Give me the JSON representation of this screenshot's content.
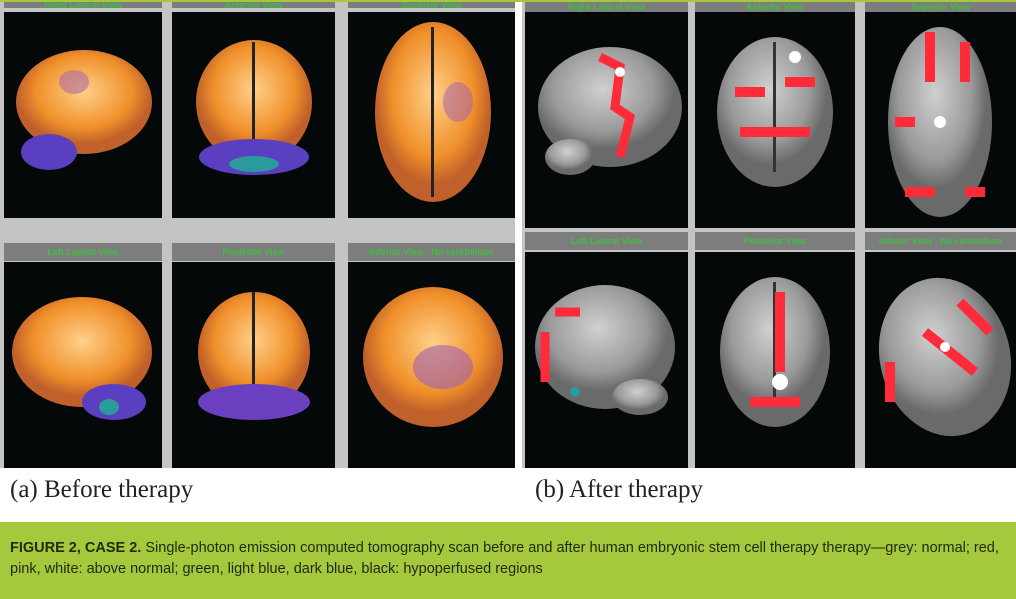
{
  "before": {
    "label": "(a) Before therapy",
    "views": [
      "Right Lateral View",
      "Anterior View",
      "Superior View",
      "Left Lateral View",
      "Posterior View",
      "Inferior View - No cerebellum"
    ]
  },
  "after": {
    "label": "(b) After therapy",
    "views": [
      "Right Lateral View",
      "Anterior View",
      "Superior View",
      "Left Lateral View",
      "Posterior View",
      "Inferior View - No cerebellum"
    ]
  },
  "caption": {
    "title": "FIGURE 2, CASE 2.",
    "text": " Single-photon emission computed tomography scan before and after human embryonic stem cell therapy therapy—grey: normal; red, pink, white: above normal; green, light blue, dark blue, black: hypoperfused regions"
  },
  "colors": {
    "accent": "#a6c83c",
    "header_text": "#3fbf3f",
    "normal": "#9a9a9a",
    "above_normal": "#ff2a3a",
    "hypo": "#5a3fc0",
    "orange": "#f0902a"
  }
}
